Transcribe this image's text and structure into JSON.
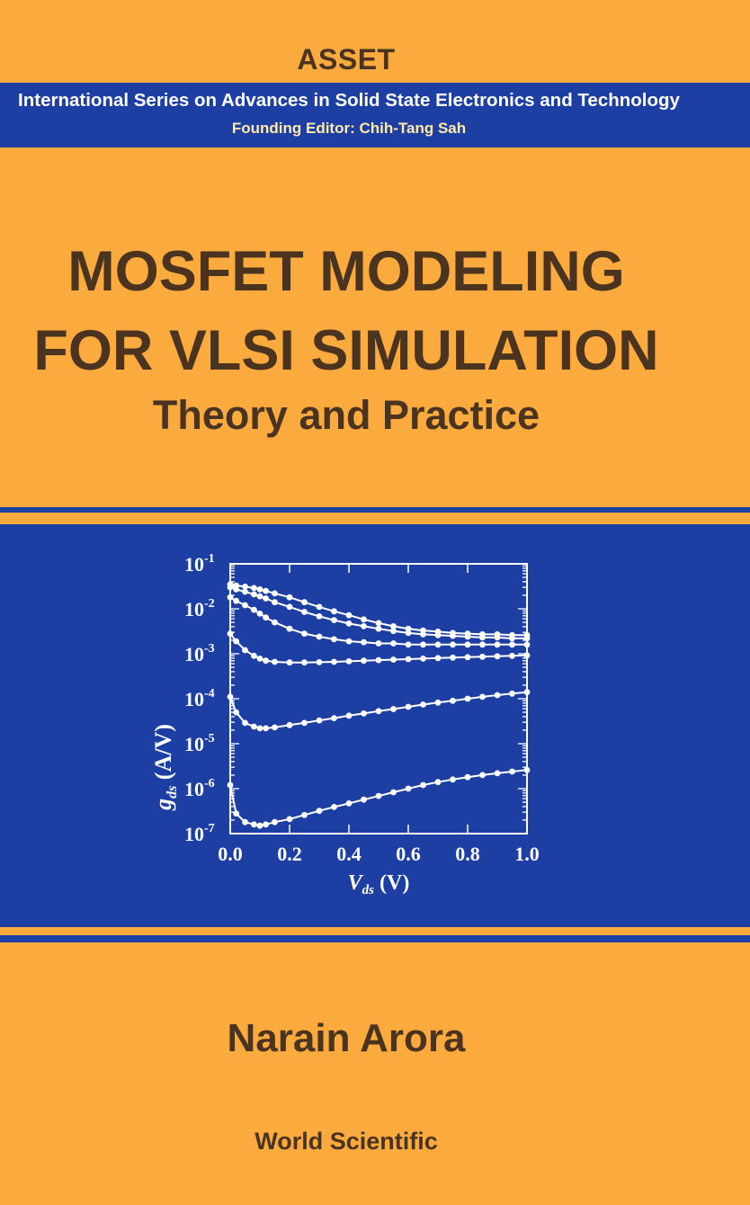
{
  "series": {
    "name": "ASSET",
    "full_name": "International Series on Advances in Solid State Electronics and Technology",
    "editor": "Founding Editor: Chih-Tang Sah"
  },
  "title": {
    "line1": "MOSFET MODELING",
    "line2": "FOR VLSI SIMULATION",
    "subtitle": "Theory and Practice"
  },
  "author": "Narain Arora",
  "publisher": "World Scientific",
  "colors": {
    "background": "#fbaa3e",
    "band": "#1d3fa4",
    "text": "#4a3420"
  },
  "chart_data": {
    "type": "scatter",
    "xlabel": "V_ds (V)",
    "ylabel": "g_ds (A/V)",
    "xlim": [
      0.0,
      1.0
    ],
    "ylim": [
      1e-07,
      0.1
    ],
    "log_y": true,
    "x_ticks": [
      "0.0",
      "0.2",
      "0.4",
      "0.6",
      "0.8",
      "1.0"
    ],
    "y_ticks": [
      {
        "base": "10",
        "exp": "-1"
      },
      {
        "base": "10",
        "exp": "-2"
      },
      {
        "base": "10",
        "exp": "-3"
      },
      {
        "base": "10",
        "exp": "-4"
      },
      {
        "base": "10",
        "exp": "-5"
      },
      {
        "base": "10",
        "exp": "-6"
      },
      {
        "base": "10",
        "exp": "-7"
      }
    ],
    "x": [
      0.0,
      0.02,
      0.05,
      0.08,
      0.1,
      0.12,
      0.15,
      0.2,
      0.25,
      0.3,
      0.35,
      0.4,
      0.45,
      0.5,
      0.55,
      0.6,
      0.65,
      0.7,
      0.75,
      0.8,
      0.85,
      0.9,
      0.95,
      1.0
    ],
    "series": [
      {
        "values": [
          0.035,
          0.033,
          0.031,
          0.029,
          0.027,
          0.025,
          0.022,
          0.018,
          0.014,
          0.011,
          0.0088,
          0.0072,
          0.0058,
          0.0048,
          0.0041,
          0.0036,
          0.0033,
          0.0031,
          0.0029,
          0.0028,
          0.0027,
          0.0027,
          0.0026,
          0.0026
        ]
      },
      {
        "values": [
          0.03,
          0.027,
          0.024,
          0.021,
          0.019,
          0.017,
          0.014,
          0.011,
          0.0085,
          0.0068,
          0.0056,
          0.0047,
          0.0041,
          0.0036,
          0.0032,
          0.0029,
          0.0027,
          0.0026,
          0.0025,
          0.0024,
          0.0023,
          0.0023,
          0.0022,
          0.0022
        ]
      },
      {
        "values": [
          0.018,
          0.015,
          0.012,
          0.0095,
          0.0078,
          0.0064,
          0.005,
          0.0036,
          0.0028,
          0.0024,
          0.0021,
          0.0019,
          0.0018,
          0.0017,
          0.0017,
          0.0016,
          0.0016,
          0.0016,
          0.0016,
          0.0016,
          0.0016,
          0.0016,
          0.0016,
          0.0016
        ]
      },
      {
        "values": [
          0.0028,
          0.0019,
          0.0012,
          0.0009,
          0.00078,
          0.0007,
          0.00066,
          0.00064,
          0.00064,
          0.00065,
          0.00066,
          0.00068,
          0.0007,
          0.00072,
          0.00074,
          0.00076,
          0.00078,
          0.0008,
          0.00082,
          0.00084,
          0.00086,
          0.00088,
          0.0009,
          0.00092
        ]
      },
      {
        "values": [
          0.00011,
          5e-05,
          2.9e-05,
          2.4e-05,
          2.2e-05,
          2.2e-05,
          2.3e-05,
          2.6e-05,
          2.9e-05,
          3.3e-05,
          3.7e-05,
          4.2e-05,
          4.7e-05,
          5.3e-05,
          5.9e-05,
          6.6e-05,
          7.4e-05,
          8.2e-05,
          9e-05,
          0.0001,
          0.00011,
          0.00012,
          0.00013,
          0.00014
        ]
      },
      {
        "values": [
          1.2e-06,
          2.8e-07,
          1.8e-07,
          1.6e-07,
          1.5e-07,
          1.6e-07,
          1.8e-07,
          2.1e-07,
          2.6e-07,
          3.2e-07,
          3.9e-07,
          4.7e-07,
          5.7e-07,
          6.9e-07,
          8.3e-07,
          1e-06,
          1.2e-06,
          1.4e-06,
          1.6e-06,
          1.8e-06,
          2e-06,
          2.2e-06,
          2.4e-06,
          2.6e-06
        ]
      }
    ]
  }
}
